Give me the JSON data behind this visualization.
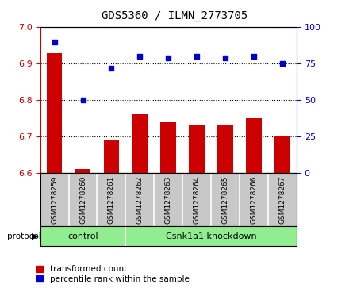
{
  "title": "GDS5360 / ILMN_2773705",
  "samples": [
    "GSM1278259",
    "GSM1278260",
    "GSM1278261",
    "GSM1278262",
    "GSM1278263",
    "GSM1278264",
    "GSM1278265",
    "GSM1278266",
    "GSM1278267"
  ],
  "transformed_count": [
    6.93,
    6.61,
    6.69,
    6.76,
    6.74,
    6.73,
    6.73,
    6.75,
    6.7
  ],
  "percentile_rank": [
    90,
    50,
    72,
    80,
    79,
    80,
    79,
    80,
    75
  ],
  "ylim_left": [
    6.6,
    7.0
  ],
  "ylim_right": [
    0,
    100
  ],
  "yticks_left": [
    6.6,
    6.7,
    6.8,
    6.9,
    7.0
  ],
  "yticks_right": [
    0,
    25,
    50,
    75,
    100
  ],
  "bar_color": "#cc0000",
  "scatter_color": "#0000cc",
  "control_samples": 3,
  "control_label": "control",
  "knockdown_label": "Csnk1a1 knockdown",
  "protocol_label": "protocol",
  "legend_bar_label": "transformed count",
  "legend_scatter_label": "percentile rank within the sample",
  "green_color": "#90ee90",
  "bg_color": "#c8c8c8",
  "title_fontsize": 10,
  "tick_fontsize": 8,
  "legend_fontsize": 7.5
}
